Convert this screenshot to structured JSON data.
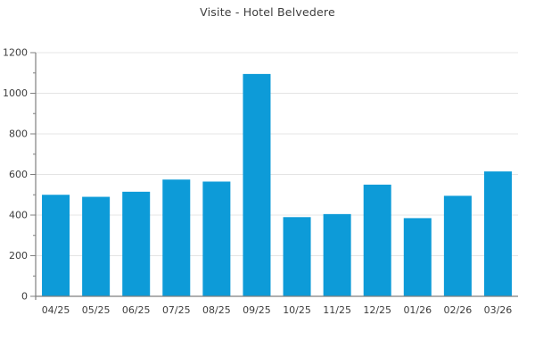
{
  "chart_data": {
    "type": "bar",
    "title": "Visite - Hotel Belvedere",
    "categories": [
      "04/25",
      "05/25",
      "06/25",
      "07/25",
      "08/25",
      "09/25",
      "10/25",
      "11/25",
      "12/25",
      "01/26",
      "02/26",
      "03/26"
    ],
    "values": [
      500,
      490,
      515,
      575,
      565,
      1095,
      390,
      405,
      550,
      385,
      495,
      615
    ],
    "xlabel": "",
    "ylabel": "",
    "ylim": [
      0,
      1200
    ],
    "y_major_step": 200,
    "y_minor_step": 100,
    "y_tick_labels": [
      "0",
      "200",
      "400",
      "600",
      "800",
      "1000",
      "1200"
    ],
    "grid": "horizontal-major",
    "legend_position": "none"
  },
  "colors": {
    "bar": "#0d9bd8",
    "grid": "#e4e4e4",
    "axis": "#7f7f7f",
    "text": "#3d3d3d",
    "background": "#ffffff"
  }
}
